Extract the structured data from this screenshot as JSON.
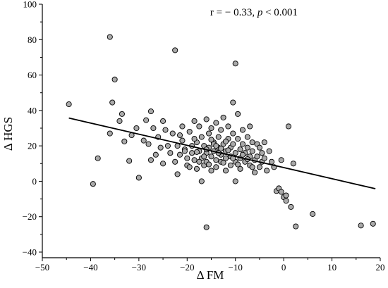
{
  "chart_data": {
    "type": "scatter",
    "annotation": {
      "prefix": "r = − 0.33, ",
      "p_symbol": "p",
      "suffix": " < 0.001"
    },
    "xlabel": "Δ FM",
    "ylabel": "Δ HGS",
    "xlim": [
      -50,
      20
    ],
    "ylim": [
      -40,
      100
    ],
    "xticks": [
      -50,
      -40,
      -30,
      -20,
      -10,
      0,
      10,
      20
    ],
    "xtick_labels": [
      "−50",
      "−40",
      "−30",
      "−20",
      "−10",
      "0",
      "10",
      "20"
    ],
    "yticks": [
      -40,
      -20,
      0,
      20,
      40,
      60,
      80,
      100
    ],
    "ytick_labels": [
      "−40",
      "−20",
      "0",
      "20",
      "40",
      "60",
      "80",
      "100"
    ],
    "grid": false,
    "point_color": "#a9a9a9",
    "point_edge_color": "#000000",
    "line_color": "#000000",
    "trendline": {
      "x": [
        -44.5,
        19
      ],
      "y": [
        35.7,
        -4.2
      ]
    },
    "points": [
      [
        -44.5,
        43.5
      ],
      [
        -39.5,
        -1.5
      ],
      [
        -38.5,
        13
      ],
      [
        -36,
        81.5
      ],
      [
        -35.5,
        44.5
      ],
      [
        -35,
        57.5
      ],
      [
        -36,
        27
      ],
      [
        -34,
        34
      ],
      [
        -33.5,
        38
      ],
      [
        -33,
        22.5
      ],
      [
        -32,
        11.5
      ],
      [
        -31.5,
        26
      ],
      [
        -30.5,
        30
      ],
      [
        -30,
        2
      ],
      [
        -29,
        23
      ],
      [
        -28.5,
        34.5
      ],
      [
        -28,
        21
      ],
      [
        -27.5,
        39.5
      ],
      [
        -27.5,
        12
      ],
      [
        -27,
        30
      ],
      [
        -26.5,
        15
      ],
      [
        -26,
        25
      ],
      [
        -25.5,
        19
      ],
      [
        -25,
        34
      ],
      [
        -25,
        10
      ],
      [
        -24.5,
        29
      ],
      [
        -24,
        20
      ],
      [
        -23.5,
        16
      ],
      [
        -23,
        27
      ],
      [
        -22.5,
        11
      ],
      [
        -22.5,
        74
      ],
      [
        -22,
        20
      ],
      [
        -22,
        4
      ],
      [
        -21.5,
        15
      ],
      [
        -21,
        31
      ],
      [
        -21,
        23
      ],
      [
        -20.5,
        18
      ],
      [
        -20,
        13
      ],
      [
        -20,
        9
      ],
      [
        -19.5,
        28
      ],
      [
        -19,
        20
      ],
      [
        -19,
        16
      ],
      [
        -18.5,
        12
      ],
      [
        -18.5,
        34
      ],
      [
        -18,
        22
      ],
      [
        -18,
        7
      ],
      [
        -17.5,
        31
      ],
      [
        -17.5,
        17
      ],
      [
        -17,
        25
      ],
      [
        -17,
        13
      ],
      [
        -17,
        0
      ],
      [
        -16.5,
        20
      ],
      [
        -16.5,
        9
      ],
      [
        -16,
        35
      ],
      [
        -16,
        16
      ],
      [
        -16,
        11
      ],
      [
        -16,
        -26
      ],
      [
        -15.5,
        27
      ],
      [
        -15.5,
        19
      ],
      [
        -15,
        14
      ],
      [
        -15,
        6
      ],
      [
        -15,
        30
      ],
      [
        -14.5,
        22
      ],
      [
        -14.5,
        17
      ],
      [
        -14,
        12
      ],
      [
        -14,
        33
      ],
      [
        -14,
        8
      ],
      [
        -13.5,
        25
      ],
      [
        -13.5,
        19
      ],
      [
        -13,
        15
      ],
      [
        -13,
        29
      ],
      [
        -13,
        11
      ],
      [
        -12.5,
        21
      ],
      [
        -12.5,
        36
      ],
      [
        -12,
        17
      ],
      [
        -12,
        13
      ],
      [
        -12,
        6
      ],
      [
        -11.5,
        24
      ],
      [
        -11.5,
        31
      ],
      [
        -11,
        19
      ],
      [
        -11,
        14
      ],
      [
        -11,
        9
      ],
      [
        -10.5,
        44.5
      ],
      [
        -10.5,
        27
      ],
      [
        -10.5,
        21
      ],
      [
        -10,
        16
      ],
      [
        -10,
        11
      ],
      [
        -10,
        0
      ],
      [
        -10,
        66.5
      ],
      [
        -9.5,
        24
      ],
      [
        -9.5,
        38
      ],
      [
        -9,
        18
      ],
      [
        -9,
        13
      ],
      [
        -9,
        7
      ],
      [
        -8.5,
        29
      ],
      [
        -8.5,
        21
      ],
      [
        -8,
        16
      ],
      [
        -8,
        11
      ],
      [
        -7.5,
        25
      ],
      [
        -7.5,
        19
      ],
      [
        -7,
        14
      ],
      [
        -7,
        9
      ],
      [
        -7,
        31
      ],
      [
        -6.5,
        22
      ],
      [
        -6.5,
        17
      ],
      [
        -6,
        12
      ],
      [
        -6,
        5
      ],
      [
        -5.5,
        21
      ],
      [
        -5.5,
        14
      ],
      [
        -5,
        19
      ],
      [
        -5,
        8
      ],
      [
        -4.5,
        16
      ],
      [
        -4.5,
        11
      ],
      [
        -4,
        22
      ],
      [
        -4,
        13
      ],
      [
        -3.5,
        6
      ],
      [
        -3,
        17
      ],
      [
        -2.5,
        11
      ],
      [
        -2,
        8
      ],
      [
        -1.5,
        -5.5
      ],
      [
        -1,
        -4
      ],
      [
        -0.5,
        12
      ],
      [
        0,
        -9
      ],
      [
        0.5,
        -8
      ],
      [
        0.5,
        -11
      ],
      [
        1,
        31
      ],
      [
        1.5,
        -14.5
      ],
      [
        2,
        10
      ],
      [
        2.5,
        -25.5
      ],
      [
        -0.5,
        -6
      ],
      [
        6,
        -18.5
      ],
      [
        16,
        -25
      ],
      [
        18.5,
        -24
      ],
      [
        -21.5,
        26
      ],
      [
        -20.5,
        17
      ],
      [
        -19.5,
        8
      ],
      [
        -18,
        16.5
      ],
      [
        -17.5,
        11
      ],
      [
        -16.5,
        14
      ],
      [
        -15.5,
        9.5
      ],
      [
        -14.5,
        21
      ],
      [
        -13.5,
        16
      ],
      [
        -12.5,
        10.5
      ],
      [
        -11.5,
        17.5
      ],
      [
        -10.5,
        13
      ],
      [
        -9.5,
        9.5
      ],
      [
        -8.5,
        15
      ],
      [
        -7.5,
        12.5
      ],
      [
        -6.5,
        8
      ],
      [
        -14,
        20
      ],
      [
        -13,
        18.5
      ],
      [
        -12,
        22.5
      ],
      [
        -15,
        23.5
      ],
      [
        -16,
        18
      ],
      [
        -18.5,
        24
      ]
    ]
  }
}
